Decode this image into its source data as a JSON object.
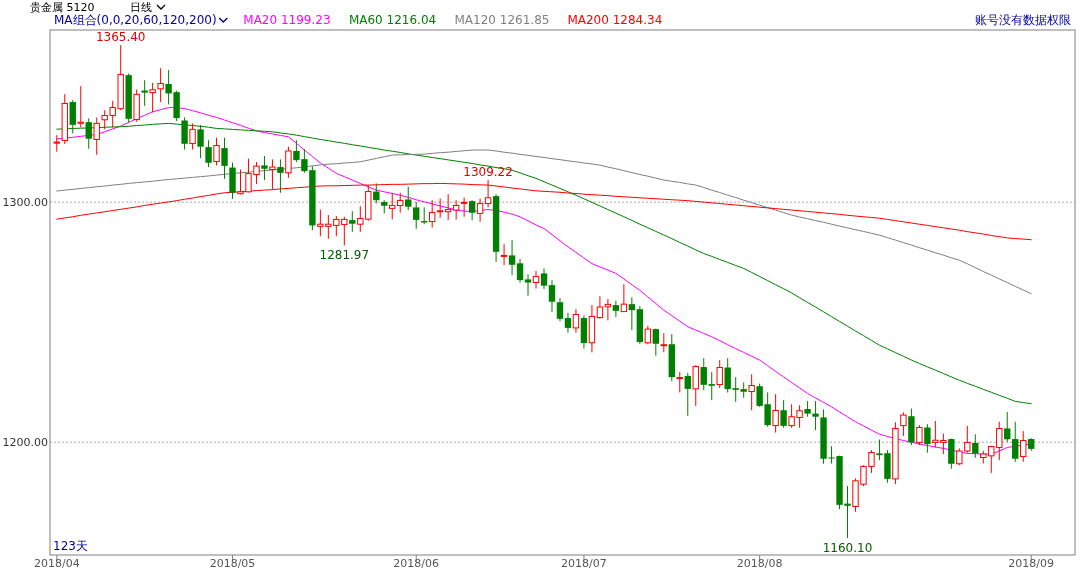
{
  "chart_data": {
    "type": "candlestick",
    "title": "贵金属 5120",
    "subtitle": "日线",
    "legend_title": "MA组合(0,0,20,60,120,200)",
    "legend": "top left",
    "grid": "y",
    "ylim": [
      1153,
      1371.7
    ],
    "yticks": [
      {
        "value": 1200,
        "label": "1200.00"
      },
      {
        "value": 1300,
        "label": "1300.00"
      }
    ],
    "categories": [
      "2018/04",
      null,
      null,
      null,
      null,
      null,
      null,
      null,
      null,
      null,
      null,
      null,
      null,
      null,
      null,
      null,
      null,
      null,
      null,
      null,
      null,
      null,
      "2018/05",
      null,
      null,
      null,
      null,
      null,
      null,
      null,
      null,
      null,
      null,
      null,
      null,
      null,
      null,
      null,
      null,
      null,
      null,
      null,
      null,
      null,
      null,
      "2018/06",
      null,
      null,
      null,
      null,
      null,
      null,
      null,
      null,
      null,
      null,
      null,
      null,
      null,
      null,
      null,
      null,
      null,
      null,
      null,
      null,
      "2018/07",
      null,
      null,
      null,
      null,
      null,
      null,
      null,
      null,
      null,
      null,
      null,
      null,
      null,
      null,
      null,
      null,
      null,
      null,
      null,
      null,
      null,
      "2018/08",
      null,
      null,
      null,
      null,
      null,
      null,
      null,
      null,
      null,
      null,
      null,
      null,
      null,
      null,
      null,
      null,
      null,
      null,
      null,
      null,
      null,
      null,
      null,
      null,
      null,
      null,
      null,
      null,
      null,
      null,
      null,
      null,
      null,
      "2018/09"
    ],
    "ohlc": [
      [
        1324.9,
        1327.9,
        1321.0,
        1325.0
      ],
      [
        1325.7,
        1345.0,
        1324.2,
        1341.1
      ],
      [
        1341.7,
        1342.5,
        1328.6,
        1332.2
      ],
      [
        1332.8,
        1348.3,
        1331.1,
        1333.3
      ],
      [
        1333.3,
        1334.9,
        1322.2,
        1326.4
      ],
      [
        1326.1,
        1335.3,
        1319.7,
        1332.8
      ],
      [
        1334.3,
        1338.3,
        1330.3,
        1336.1
      ],
      [
        1336.1,
        1342.2,
        1331.1,
        1339.4
      ],
      [
        1338.9,
        1365.4,
        1338.3,
        1353.2
      ],
      [
        1352.9,
        1353.6,
        1333.1,
        1334.7
      ],
      [
        1334.4,
        1346.9,
        1333.5,
        1344.9
      ],
      [
        1346.5,
        1350.8,
        1340.1,
        1345.6
      ],
      [
        1345.6,
        1349.7,
        1337.4,
        1346.8
      ],
      [
        1347.2,
        1355.8,
        1341.7,
        1349.4
      ],
      [
        1349.2,
        1355.0,
        1340.7,
        1345.3
      ],
      [
        1345.8,
        1346.4,
        1333.8,
        1335.0
      ],
      [
        1334.0,
        1335.3,
        1321.9,
        1324.3
      ],
      [
        1324.4,
        1332.8,
        1321.9,
        1330.3
      ],
      [
        1330.3,
        1332.1,
        1318.3,
        1323.1
      ],
      [
        1322.9,
        1325.8,
        1314.6,
        1316.4
      ],
      [
        1316.9,
        1326.8,
        1315.3,
        1323.6
      ],
      [
        1322.5,
        1326.8,
        1309.7,
        1315.1
      ],
      [
        1314.4,
        1316.4,
        1301.4,
        1303.9
      ],
      [
        1303.5,
        1313.6,
        1303.2,
        1304.3
      ],
      [
        1304.3,
        1318.1,
        1304.0,
        1311.9
      ],
      [
        1311.5,
        1316.7,
        1307.5,
        1315.0
      ],
      [
        1315.3,
        1319.2,
        1309.2,
        1313.9
      ],
      [
        1313.6,
        1317.8,
        1305.3,
        1314.6
      ],
      [
        1314.6,
        1317.8,
        1303.9,
        1312.2
      ],
      [
        1312.2,
        1323.1,
        1310.1,
        1321.3
      ],
      [
        1321.3,
        1325.8,
        1316.7,
        1317.5
      ],
      [
        1317.9,
        1322.1,
        1312.2,
        1312.9
      ],
      [
        1313.3,
        1315.0,
        1288.3,
        1290.3
      ],
      [
        1289.9,
        1296.9,
        1285.8,
        1290.8
      ],
      [
        1289.9,
        1294.6,
        1284.7,
        1290.8
      ],
      [
        1290.3,
        1294.2,
        1285.8,
        1292.8
      ],
      [
        1290.7,
        1293.9,
        1281.97,
        1292.8
      ],
      [
        1292.5,
        1296.2,
        1287.6,
        1291.0
      ],
      [
        1290.8,
        1298.3,
        1287.6,
        1293.2
      ],
      [
        1292.9,
        1307.1,
        1292.2,
        1304.4
      ],
      [
        1304.4,
        1307.8,
        1299.4,
        1300.8
      ],
      [
        1300.0,
        1300.8,
        1295.3,
        1298.5
      ],
      [
        1297.4,
        1303.9,
        1292.8,
        1298.6
      ],
      [
        1298.6,
        1303.9,
        1295.6,
        1300.7
      ],
      [
        1301.1,
        1306.4,
        1296.7,
        1298.1
      ],
      [
        1297.8,
        1300.1,
        1288.9,
        1292.6
      ],
      [
        1292.1,
        1297.8,
        1290.8,
        1291.5
      ],
      [
        1291.9,
        1300.8,
        1289.4,
        1295.7
      ],
      [
        1296.3,
        1301.5,
        1293.5,
        1296.4
      ],
      [
        1296.0,
        1303.3,
        1292.5,
        1296.9
      ],
      [
        1296.7,
        1300.8,
        1292.8,
        1298.6
      ],
      [
        1299.8,
        1301.9,
        1293.9,
        1299.9
      ],
      [
        1300.4,
        1300.8,
        1292.5,
        1295.6
      ],
      [
        1295.3,
        1301.5,
        1291.8,
        1299.4
      ],
      [
        1299.4,
        1309.22,
        1297.8,
        1301.8
      ],
      [
        1302.5,
        1303.3,
        1275.1,
        1279.3
      ],
      [
        1277.7,
        1282.5,
        1273.7,
        1277.8
      ],
      [
        1277.8,
        1284.2,
        1269.6,
        1273.9
      ],
      [
        1274.5,
        1276.3,
        1266.4,
        1267.5
      ],
      [
        1267.8,
        1269.9,
        1261.0,
        1266.5
      ],
      [
        1266.5,
        1271.3,
        1264.0,
        1269.0
      ],
      [
        1270.3,
        1272.4,
        1263.8,
        1265.2
      ],
      [
        1265.4,
        1267.5,
        1254.3,
        1258.5
      ],
      [
        1258.3,
        1260.1,
        1250.4,
        1251.4
      ],
      [
        1251.7,
        1253.9,
        1245.6,
        1247.6
      ],
      [
        1247.6,
        1255.4,
        1245.6,
        1253.2
      ],
      [
        1251.7,
        1252.8,
        1239.0,
        1241.3
      ],
      [
        1241.4,
        1257.1,
        1237.4,
        1252.4
      ],
      [
        1251.9,
        1260.8,
        1251.4,
        1256.3
      ],
      [
        1256.4,
        1259.6,
        1250.7,
        1257.4
      ],
      [
        1257.1,
        1258.9,
        1252.2,
        1254.7
      ],
      [
        1254.4,
        1265.8,
        1254.4,
        1257.5
      ],
      [
        1257.5,
        1260.3,
        1246.7,
        1255.0
      ],
      [
        1255.4,
        1256.7,
        1241.0,
        1241.7
      ],
      [
        1241.4,
        1248.5,
        1240.8,
        1247.1
      ],
      [
        1247.1,
        1247.3,
        1236.0,
        1241.0
      ],
      [
        1240.5,
        1245.4,
        1237.5,
        1240.6
      ],
      [
        1240.8,
        1245.0,
        1225.4,
        1227.1
      ],
      [
        1226.8,
        1229.2,
        1220.7,
        1226.9
      ],
      [
        1227.6,
        1228.9,
        1211.0,
        1222.2
      ],
      [
        1222.2,
        1232.1,
        1215.1,
        1231.5
      ],
      [
        1231.3,
        1235.0,
        1221.7,
        1223.9
      ],
      [
        1224.2,
        1229.2,
        1217.5,
        1223.5
      ],
      [
        1224.0,
        1234.2,
        1222.6,
        1231.1
      ],
      [
        1231.1,
        1235.0,
        1220.7,
        1222.1
      ],
      [
        1222.5,
        1227.1,
        1216.8,
        1221.8
      ],
      [
        1222.1,
        1224.9,
        1218.5,
        1221.0
      ],
      [
        1221.1,
        1228.3,
        1213.3,
        1223.6
      ],
      [
        1223.3,
        1224.4,
        1214.7,
        1215.1
      ],
      [
        1215.8,
        1220.7,
        1206.4,
        1207.1
      ],
      [
        1206.9,
        1220.0,
        1204.0,
        1213.2
      ],
      [
        1213.3,
        1217.5,
        1206.0,
        1206.8
      ],
      [
        1206.9,
        1215.8,
        1206.0,
        1210.6
      ],
      [
        1210.3,
        1215.4,
        1206.0,
        1213.1
      ],
      [
        1213.8,
        1217.1,
        1210.6,
        1211.9
      ],
      [
        1211.9,
        1217.1,
        1205.0,
        1210.6
      ],
      [
        1210.3,
        1213.6,
        1191.0,
        1193.1
      ],
      [
        1193.6,
        1198.3,
        1191.1,
        1193.5
      ],
      [
        1194.2,
        1194.4,
        1172.1,
        1173.9
      ],
      [
        1174.4,
        1181.7,
        1160.1,
        1173.5
      ],
      [
        1173.2,
        1184.9,
        1171.0,
        1183.9
      ],
      [
        1182.5,
        1190.4,
        1181.7,
        1189.9
      ],
      [
        1189.9,
        1196.7,
        1187.2,
        1195.7
      ],
      [
        1195.3,
        1201.1,
        1192.5,
        1194.6
      ],
      [
        1195.4,
        1196.7,
        1183.1,
        1184.7
      ],
      [
        1184.7,
        1208.3,
        1182.5,
        1205.7
      ],
      [
        1206.9,
        1212.4,
        1202.6,
        1211.3
      ],
      [
        1210.8,
        1214.0,
        1198.8,
        1199.9
      ],
      [
        1199.9,
        1207.1,
        1198.8,
        1206.1
      ],
      [
        1206.1,
        1207.5,
        1195.6,
        1199.2
      ],
      [
        1199.9,
        1208.8,
        1197.8,
        1200.8
      ],
      [
        1199.9,
        1203.6,
        1195.0,
        1200.7
      ],
      [
        1201.3,
        1201.5,
        1188.9,
        1191.0
      ],
      [
        1191.0,
        1197.4,
        1190.4,
        1196.3
      ],
      [
        1196.3,
        1206.8,
        1195.6,
        1199.9
      ],
      [
        1199.7,
        1203.3,
        1193.5,
        1195.3
      ],
      [
        1193.6,
        1196.4,
        1191.1,
        1195.1
      ],
      [
        1194.3,
        1198.5,
        1187.2,
        1198.2
      ],
      [
        1197.8,
        1208.5,
        1192.5,
        1205.7
      ],
      [
        1205.7,
        1212.6,
        1200.1,
        1201.2
      ],
      [
        1201.3,
        1208.5,
        1191.8,
        1193.1
      ],
      [
        1194.0,
        1204.6,
        1191.8,
        1200.7
      ],
      [
        1201.3,
        1201.7,
        1196.4,
        1197.2
      ]
    ],
    "colors": [
      "#ff0000",
      "#ff0000",
      "#008000",
      "#ff0000",
      "#008000",
      "#ff0000",
      "#ff0000",
      "#ff0000",
      "#ff0000",
      "#008000",
      "#ff0000",
      "#008000",
      "#ff0000",
      "#ff0000",
      "#008000",
      "#008000",
      "#008000",
      "#ff0000",
      "#008000",
      "#008000",
      "#ff0000",
      "#008000",
      "#008000",
      "#ff0000",
      "#ff0000",
      "#ff0000",
      "#008000",
      "#ff0000",
      "#008000",
      "#ff0000",
      "#008000",
      "#008000",
      "#008000",
      "#ff0000",
      "#ff0000",
      "#ff0000",
      "#ff0000",
      "#008000",
      "#ff0000",
      "#ff0000",
      "#008000",
      "#008000",
      "#ff0000",
      "#ff0000",
      "#008000",
      "#008000",
      "#008000",
      "#ff0000",
      "#ff0000",
      "#ff0000",
      "#ff0000",
      "#ff0000",
      "#008000",
      "#ff0000",
      "#ff0000",
      "#008000",
      "#ff0000",
      "#008000",
      "#008000",
      "#008000",
      "#ff0000",
      "#008000",
      "#008000",
      "#008000",
      "#008000",
      "#ff0000",
      "#008000",
      "#ff0000",
      "#ff0000",
      "#ff0000",
      "#008000",
      "#ff0000",
      "#008000",
      "#008000",
      "#ff0000",
      "#008000",
      "#ff0000",
      "#008000",
      "#ff0000",
      "#008000",
      "#ff0000",
      "#008000",
      "#008000",
      "#ff0000",
      "#008000",
      "#008000",
      "#008000",
      "#ff0000",
      "#008000",
      "#008000",
      "#ff0000",
      "#008000",
      "#ff0000",
      "#ff0000",
      "#008000",
      "#008000",
      "#008000",
      "#008000",
      "#008000",
      "#008000",
      "#ff0000",
      "#ff0000",
      "#ff0000",
      "#008000",
      "#008000",
      "#ff0000",
      "#ff0000",
      "#008000",
      "#ff0000",
      "#008000",
      "#ff0000",
      "#ff0000",
      "#008000",
      "#ff0000",
      "#ff0000",
      "#008000",
      "#ff0000",
      "#ff0000",
      "#ff0000",
      "#008000",
      "#008000",
      "#ff0000",
      "#008000"
    ],
    "series": [
      {
        "name": "MA20 1199.23",
        "type": "line",
        "color": "#ff00ff",
        "values": [
          1326.3,
          1326.6,
          1327.0,
          1327.4,
          1327.8,
          1328.2,
          1329.3,
          1330.5,
          1331.7,
          1333.2,
          1334.7,
          1336.2,
          1337.6,
          1338.5,
          1339.4,
          1339.3,
          1339.0,
          1338.1,
          1337.2,
          1336.2,
          1335.3,
          1334.2,
          1333.1,
          1332.0,
          1330.8,
          1329.7,
          1329.0,
          1328.4,
          1327.8,
          1327.2,
          1324.5,
          1321.7,
          1319.0,
          1316.3,
          1314.2,
          1312.0,
          1310.6,
          1309.2,
          1307.8,
          1306.4,
          1305.0,
          1304.3,
          1303.6,
          1302.9,
          1302.0,
          1301.0,
          1300.1,
          1299.3,
          1298.4,
          1297.6,
          1296.7,
          1296.3,
          1296.0,
          1296.5,
          1296.9,
          1296.5,
          1295.8,
          1295.0,
          1293.9,
          1292.2,
          1290.5,
          1289.0,
          1286.5,
          1283.9,
          1281.4,
          1279.1,
          1276.7,
          1274.4,
          1273.0,
          1271.7,
          1270.3,
          1268.0,
          1265.6,
          1263.3,
          1260.5,
          1257.8,
          1255.0,
          1252.7,
          1250.4,
          1248.1,
          1246.7,
          1245.3,
          1243.9,
          1242.3,
          1240.6,
          1239.0,
          1237.4,
          1235.8,
          1234.2,
          1231.9,
          1229.5,
          1227.2,
          1224.9,
          1222.6,
          1220.3,
          1218.4,
          1216.6,
          1214.7,
          1212.6,
          1210.6,
          1208.5,
          1206.8,
          1205.0,
          1203.3,
          1202.4,
          1201.5,
          1200.7,
          1200.0,
          1199.2,
          1198.6,
          1198.0,
          1197.4,
          1196.7,
          1196.0,
          1195.3,
          1195.2,
          1195.0,
          1194.9,
          1196.3,
          1197.8,
          1198.3,
          1198.8,
          1199.23
        ]
      },
      {
        "name": "MA60 1216.04",
        "type": "line",
        "color": "#008000",
        "values": [
          1330.4,
          1330.5,
          1330.7,
          1330.8,
          1330.9,
          1331.0,
          1331.2,
          1331.3,
          1331.4,
          1331.6,
          1331.9,
          1332.1,
          1332.4,
          1332.6,
          1332.8,
          1332.5,
          1332.2,
          1331.9,
          1331.6,
          1331.2,
          1330.7,
          1330.5,
          1330.3,
          1330.1,
          1329.9,
          1329.7,
          1329.5,
          1329.3,
          1328.8,
          1328.4,
          1327.9,
          1327.3,
          1326.7,
          1326.1,
          1325.6,
          1325.0,
          1324.5,
          1323.9,
          1323.4,
          1322.8,
          1322.3,
          1321.7,
          1321.2,
          1320.7,
          1320.1,
          1319.6,
          1319.1,
          1318.6,
          1318.1,
          1317.6,
          1317.1,
          1316.6,
          1316.1,
          1315.5,
          1315.0,
          1314.4,
          1313.9,
          1313.3,
          1312.2,
          1311.0,
          1309.9,
          1308.5,
          1307.1,
          1305.7,
          1304.3,
          1302.9,
          1301.4,
          1299.9,
          1298.4,
          1296.9,
          1295.4,
          1293.9,
          1292.4,
          1290.8,
          1289.3,
          1287.8,
          1286.3,
          1284.8,
          1283.2,
          1281.7,
          1280.1,
          1278.6,
          1277.4,
          1276.1,
          1274.9,
          1273.6,
          1272.4,
          1270.7,
          1269.0,
          1267.3,
          1265.6,
          1263.9,
          1262.2,
          1260.2,
          1258.2,
          1256.3,
          1254.3,
          1252.3,
          1250.3,
          1248.3,
          1246.3,
          1244.4,
          1242.4,
          1240.4,
          1238.9,
          1237.3,
          1235.8,
          1234.2,
          1232.8,
          1231.4,
          1230.0,
          1228.6,
          1227.2,
          1225.8,
          1224.5,
          1223.3,
          1222.0,
          1220.8,
          1219.5,
          1218.3,
          1217.0,
          1216.5,
          1216.04
        ]
      },
      {
        "name": "MA120 1261.85",
        "type": "line",
        "color": "#808080",
        "values": [
          1304.6,
          1305.0,
          1305.3,
          1305.7,
          1306.0,
          1306.4,
          1306.7,
          1307.1,
          1307.4,
          1307.8,
          1308.1,
          1308.4,
          1308.7,
          1309.1,
          1309.4,
          1309.7,
          1310.0,
          1310.3,
          1310.6,
          1310.9,
          1311.25,
          1311.6,
          1311.9,
          1312.2,
          1312.5,
          1312.8,
          1313.1,
          1313.4,
          1313.7,
          1314.0,
          1314.3,
          1314.7,
          1315.1,
          1315.5,
          1315.8,
          1316.0,
          1316.3,
          1316.5,
          1316.8,
          1317.5,
          1318.2,
          1318.9,
          1319.6,
          1319.7,
          1319.8,
          1319.9,
          1320.0,
          1320.3,
          1320.6,
          1320.8,
          1321.1,
          1321.4,
          1321.7,
          1321.7,
          1321.7,
          1321.3,
          1320.8,
          1320.4,
          1319.9,
          1319.5,
          1319.0,
          1318.6,
          1318.1,
          1317.7,
          1317.2,
          1316.8,
          1316.3,
          1315.9,
          1315.4,
          1314.6,
          1313.9,
          1313.1,
          1312.3,
          1311.5,
          1310.8,
          1310.0,
          1309.2,
          1308.7,
          1308.2,
          1307.6,
          1307.1,
          1306.1,
          1305.0,
          1304.0,
          1302.9,
          1301.9,
          1300.8,
          1299.8,
          1298.75,
          1297.7,
          1296.7,
          1295.6,
          1294.6,
          1293.8,
          1293.1,
          1292.3,
          1291.6,
          1290.8,
          1290.0,
          1289.3,
          1288.5,
          1287.8,
          1287.0,
          1286.25,
          1285.2,
          1284.2,
          1283.1,
          1282.1,
          1281.0,
          1280.0,
          1278.9,
          1277.9,
          1276.8,
          1275.8,
          1274.3,
          1272.7,
          1271.1,
          1269.6,
          1268.0,
          1266.5,
          1264.9,
          1263.4,
          1261.85
        ]
      },
      {
        "name": "MA200 1284.34",
        "type": "line",
        "color": "#ff0000",
        "values": [
          1292.9,
          1293.4,
          1293.9,
          1294.5,
          1295.0,
          1295.5,
          1296.0,
          1296.5,
          1297.0,
          1297.5,
          1298.0,
          1298.6,
          1299.1,
          1299.6,
          1300.1,
          1300.6,
          1301.2,
          1301.7,
          1302.3,
          1302.8,
          1303.4,
          1303.9,
          1304.1,
          1304.3,
          1304.6,
          1304.8,
          1305.0,
          1305.2,
          1305.5,
          1305.7,
          1306.0,
          1306.2,
          1306.5,
          1306.7,
          1306.8,
          1306.8,
          1306.9,
          1307.0,
          1307.1,
          1307.1,
          1307.2,
          1307.3,
          1307.4,
          1307.4,
          1307.5,
          1307.6,
          1307.7,
          1307.7,
          1307.8,
          1307.7,
          1307.6,
          1307.5,
          1307.3,
          1307.2,
          1307.1,
          1306.7,
          1306.3,
          1305.9,
          1305.5,
          1305.1,
          1304.7,
          1304.5,
          1304.3,
          1304.1,
          1303.8,
          1303.6,
          1303.3,
          1303.1,
          1302.9,
          1302.7,
          1302.4,
          1302.2,
          1302.0,
          1301.8,
          1301.6,
          1301.4,
          1301.2,
          1301.0,
          1300.8,
          1300.6,
          1300.3,
          1300.0,
          1299.7,
          1299.4,
          1299.1,
          1298.8,
          1298.5,
          1298.2,
          1297.9,
          1297.6,
          1297.3,
          1297.0,
          1296.7,
          1296.4,
          1296.1,
          1295.8,
          1295.5,
          1295.2,
          1294.9,
          1294.5,
          1294.2,
          1293.9,
          1293.6,
          1293.3,
          1292.8,
          1292.3,
          1291.8,
          1291.3,
          1290.8,
          1290.3,
          1289.8,
          1289.3,
          1288.8,
          1288.3,
          1287.7,
          1287.2,
          1286.7,
          1286.1,
          1285.6,
          1285.1,
          1284.8,
          1284.6,
          1284.34
        ]
      }
    ],
    "annotations": [
      {
        "text": "1365.40",
        "y": 1365.4
      },
      {
        "text": "1309.22",
        "y": 1309.22
      },
      {
        "text": "1281.97",
        "y": 1281.97
      },
      {
        "text": "1160.10",
        "y": 1160.1
      },
      "账号没有数据权限",
      "123天"
    ]
  }
}
